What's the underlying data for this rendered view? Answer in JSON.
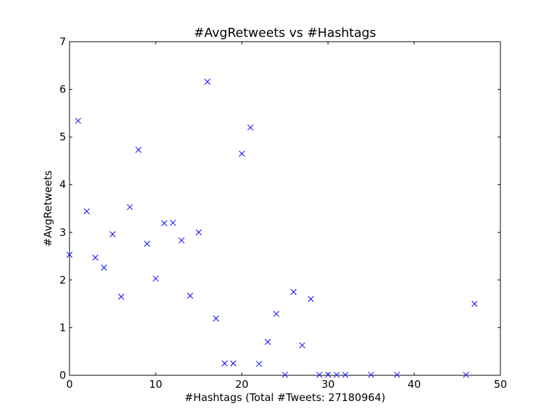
{
  "chart_data": {
    "type": "scatter",
    "title": "#AvgRetweets vs #Hashtags",
    "xlabel": "#Hashtags  (Total #Tweets: 27180964)",
    "ylabel": "#AvgRetweets",
    "xlim": [
      0,
      50
    ],
    "ylim": [
      0,
      7
    ],
    "xticks": [
      0,
      10,
      20,
      30,
      40,
      50
    ],
    "yticks": [
      0,
      1,
      2,
      3,
      4,
      5,
      6,
      7
    ],
    "grid": false,
    "marker": "x",
    "color": "#0000ff",
    "series": [
      {
        "points": [
          [
            0,
            2.53
          ],
          [
            1,
            5.34
          ],
          [
            2,
            3.44
          ],
          [
            3,
            2.47
          ],
          [
            4,
            2.26
          ],
          [
            5,
            2.96
          ],
          [
            6,
            1.65
          ],
          [
            7,
            3.53
          ],
          [
            8,
            4.73
          ],
          [
            9,
            2.76
          ],
          [
            10,
            2.03
          ],
          [
            11,
            3.19
          ],
          [
            12,
            3.2
          ],
          [
            13,
            2.83
          ],
          [
            14,
            1.67
          ],
          [
            15,
            3.0
          ],
          [
            16,
            6.16
          ],
          [
            17,
            1.19
          ],
          [
            18,
            0.25
          ],
          [
            19,
            0.25
          ],
          [
            20,
            4.65
          ],
          [
            21,
            5.2
          ],
          [
            22,
            0.24
          ],
          [
            23,
            0.7
          ],
          [
            24,
            1.29
          ],
          [
            25,
            0.01
          ],
          [
            26,
            1.75
          ],
          [
            27,
            0.63
          ],
          [
            28,
            1.6
          ],
          [
            29,
            0.01
          ],
          [
            30,
            0.01
          ],
          [
            31,
            0.01
          ],
          [
            32,
            0.01
          ],
          [
            35,
            0.01
          ],
          [
            38,
            0.01
          ],
          [
            46,
            0.01
          ],
          [
            47,
            1.5
          ]
        ]
      }
    ]
  }
}
